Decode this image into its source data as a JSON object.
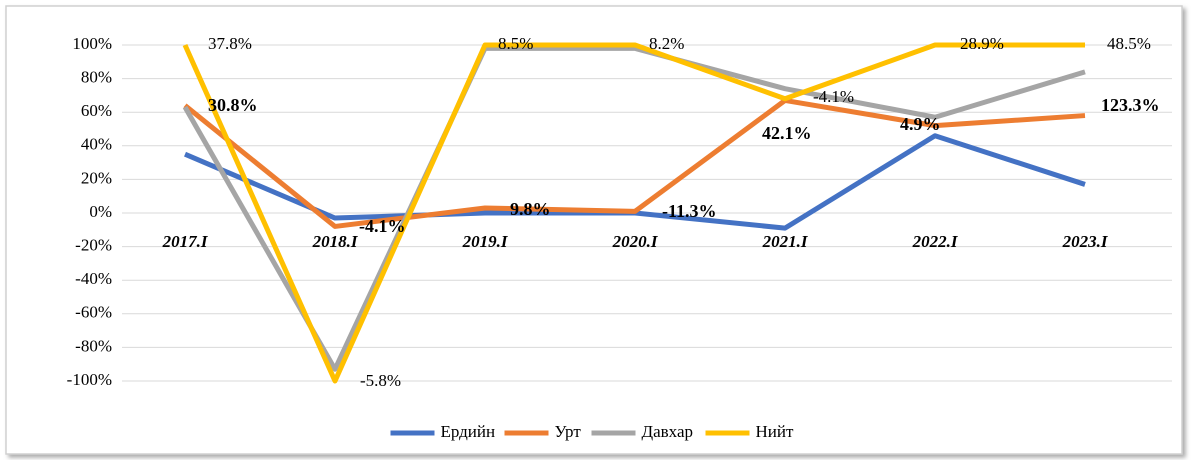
{
  "chart_data": {
    "type": "line",
    "categories": [
      "2017.I",
      "2018.I",
      "2019.I",
      "2020.I",
      "2021.I",
      "2022.I",
      "2023.I"
    ],
    "series": [
      {
        "name": "Ердийн",
        "color": "#4472c4",
        "values": [
          35,
          -3,
          0,
          0,
          -9,
          46,
          17
        ]
      },
      {
        "name": "Урт",
        "color": "#ed7d31",
        "values": [
          64,
          -8,
          3,
          1,
          67,
          52,
          58
        ]
      },
      {
        "name": "Давхар",
        "color": "#a5a5a5",
        "values": [
          63,
          -93,
          98,
          98,
          74,
          57,
          84
        ]
      },
      {
        "name": "Нийт",
        "color": "#ffc000",
        "values": [
          100,
          -100,
          100,
          100,
          68,
          100,
          100
        ]
      }
    ],
    "annotations": [
      [
        "37.8%",
        "-5.8%",
        "8.5%",
        "8.2%",
        "-4.1%",
        "28.9%",
        "48.5%"
      ],
      [
        "30.8%",
        "-4.1%",
        "9.8%",
        "-11.3%",
        "42.1%",
        "4.9%",
        "123.3%"
      ]
    ],
    "ylim": [
      -100,
      100
    ],
    "yticks": [
      {
        "value": 100,
        "label": "100%"
      },
      {
        "value": 80,
        "label": "80%"
      },
      {
        "value": 60,
        "label": "60%"
      },
      {
        "value": 40,
        "label": "40%"
      },
      {
        "value": 20,
        "label": "20%"
      },
      {
        "value": 0,
        "label": "0%"
      },
      {
        "value": -20,
        "label": "-20%"
      },
      {
        "value": -40,
        "label": "-40%"
      },
      {
        "value": -60,
        "label": "-60%"
      },
      {
        "value": -80,
        "label": "-80%"
      },
      {
        "value": -100,
        "label": "-100%"
      }
    ],
    "grid": true,
    "legend": "bottom"
  }
}
